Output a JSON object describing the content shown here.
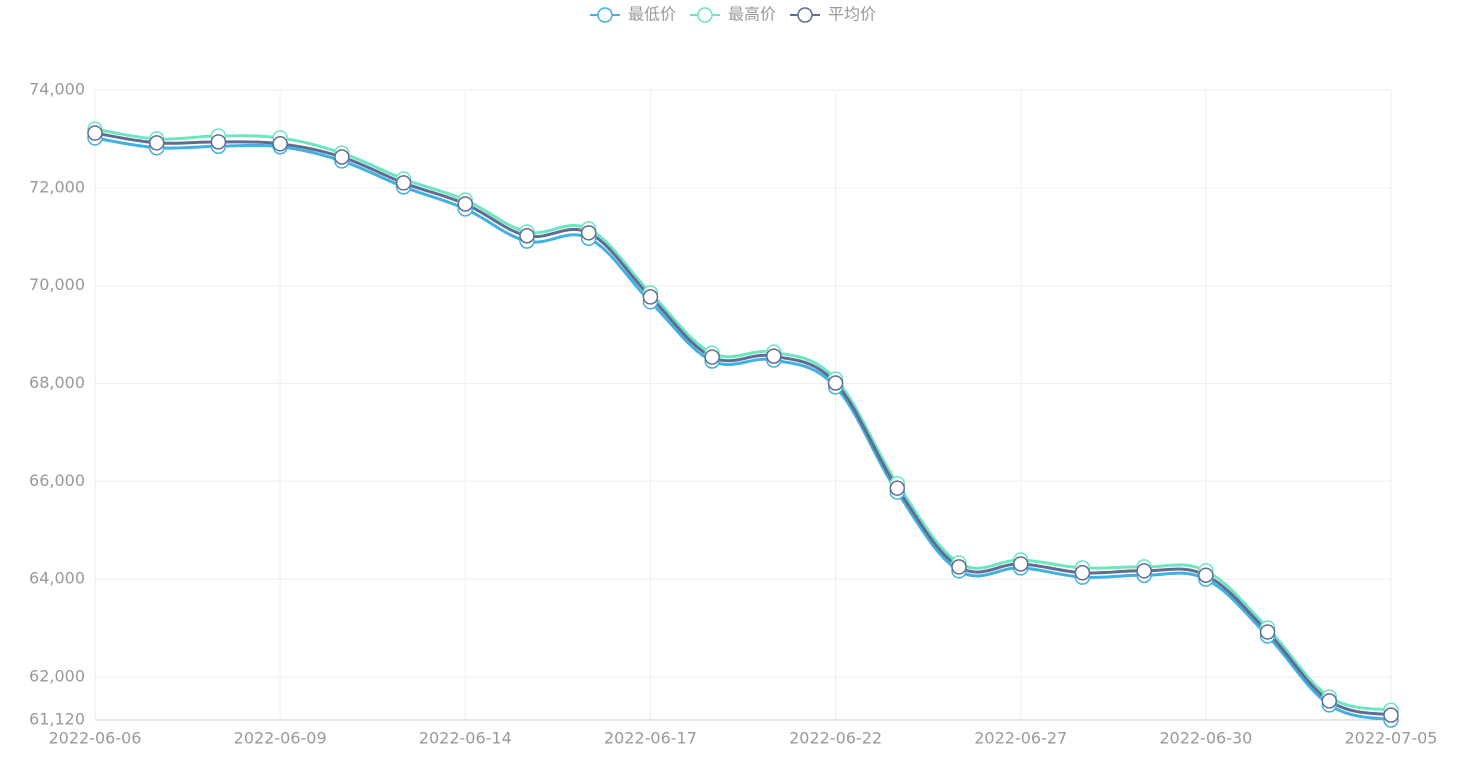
{
  "chart_data": {
    "type": "line",
    "categories": [
      "2022-06-06",
      null,
      null,
      "2022-06-09",
      null,
      null,
      "2022-06-14",
      null,
      null,
      "2022-06-17",
      null,
      null,
      "2022-06-22",
      null,
      null,
      "2022-06-27",
      null,
      null,
      "2022-06-30",
      null,
      null,
      "2022-07-05"
    ],
    "series": [
      {
        "name": "最低价",
        "color": "#3fb1e3",
        "values": [
          73020,
          72820,
          72850,
          72840,
          72550,
          72020,
          71570,
          70910,
          70970,
          69670,
          68460,
          68480,
          67930,
          65780,
          64170,
          64230,
          64040,
          64080,
          64000,
          62840,
          61430,
          61120
        ]
      },
      {
        "name": "最高价",
        "color": "#6be6c1",
        "values": [
          73200,
          73000,
          73060,
          73020,
          72710,
          72180,
          71750,
          71100,
          71160,
          69850,
          68620,
          68640,
          68090,
          65950,
          64330,
          64390,
          64230,
          64250,
          64170,
          63000,
          61590,
          61320
        ]
      },
      {
        "name": "平均价",
        "color": "#626c91",
        "values": [
          73120,
          72920,
          72940,
          72900,
          72630,
          72100,
          71670,
          71020,
          71080,
          69770,
          68540,
          68560,
          68010,
          65860,
          64250,
          64310,
          64130,
          64170,
          64080,
          62920,
          61510,
          61220
        ]
      }
    ],
    "ylim": [
      61120,
      74000
    ],
    "yticks": [
      {
        "value": 61120,
        "label": "61,120"
      },
      {
        "value": 62000,
        "label": "62,000"
      },
      {
        "value": 64000,
        "label": "64,000"
      },
      {
        "value": 66000,
        "label": "66,000"
      },
      {
        "value": 68000,
        "label": "68,000"
      },
      {
        "value": 70000,
        "label": "70,000"
      },
      {
        "value": 72000,
        "label": "72,000"
      },
      {
        "value": 74000,
        "label": "74,000"
      }
    ],
    "grid": true
  }
}
